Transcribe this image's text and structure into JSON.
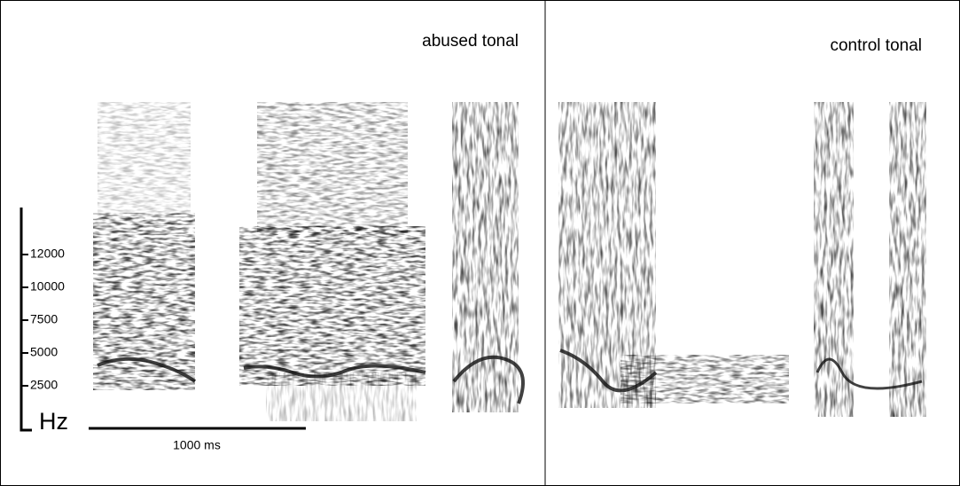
{
  "panels": [
    {
      "label": "abused tonal"
    },
    {
      "label": "control tonal"
    }
  ],
  "frequency_axis": {
    "unit": "Hz",
    "ticks": [
      12000,
      10000,
      7500,
      5000,
      2500
    ]
  },
  "time_scale_bar": {
    "label": "1000 ms"
  }
}
